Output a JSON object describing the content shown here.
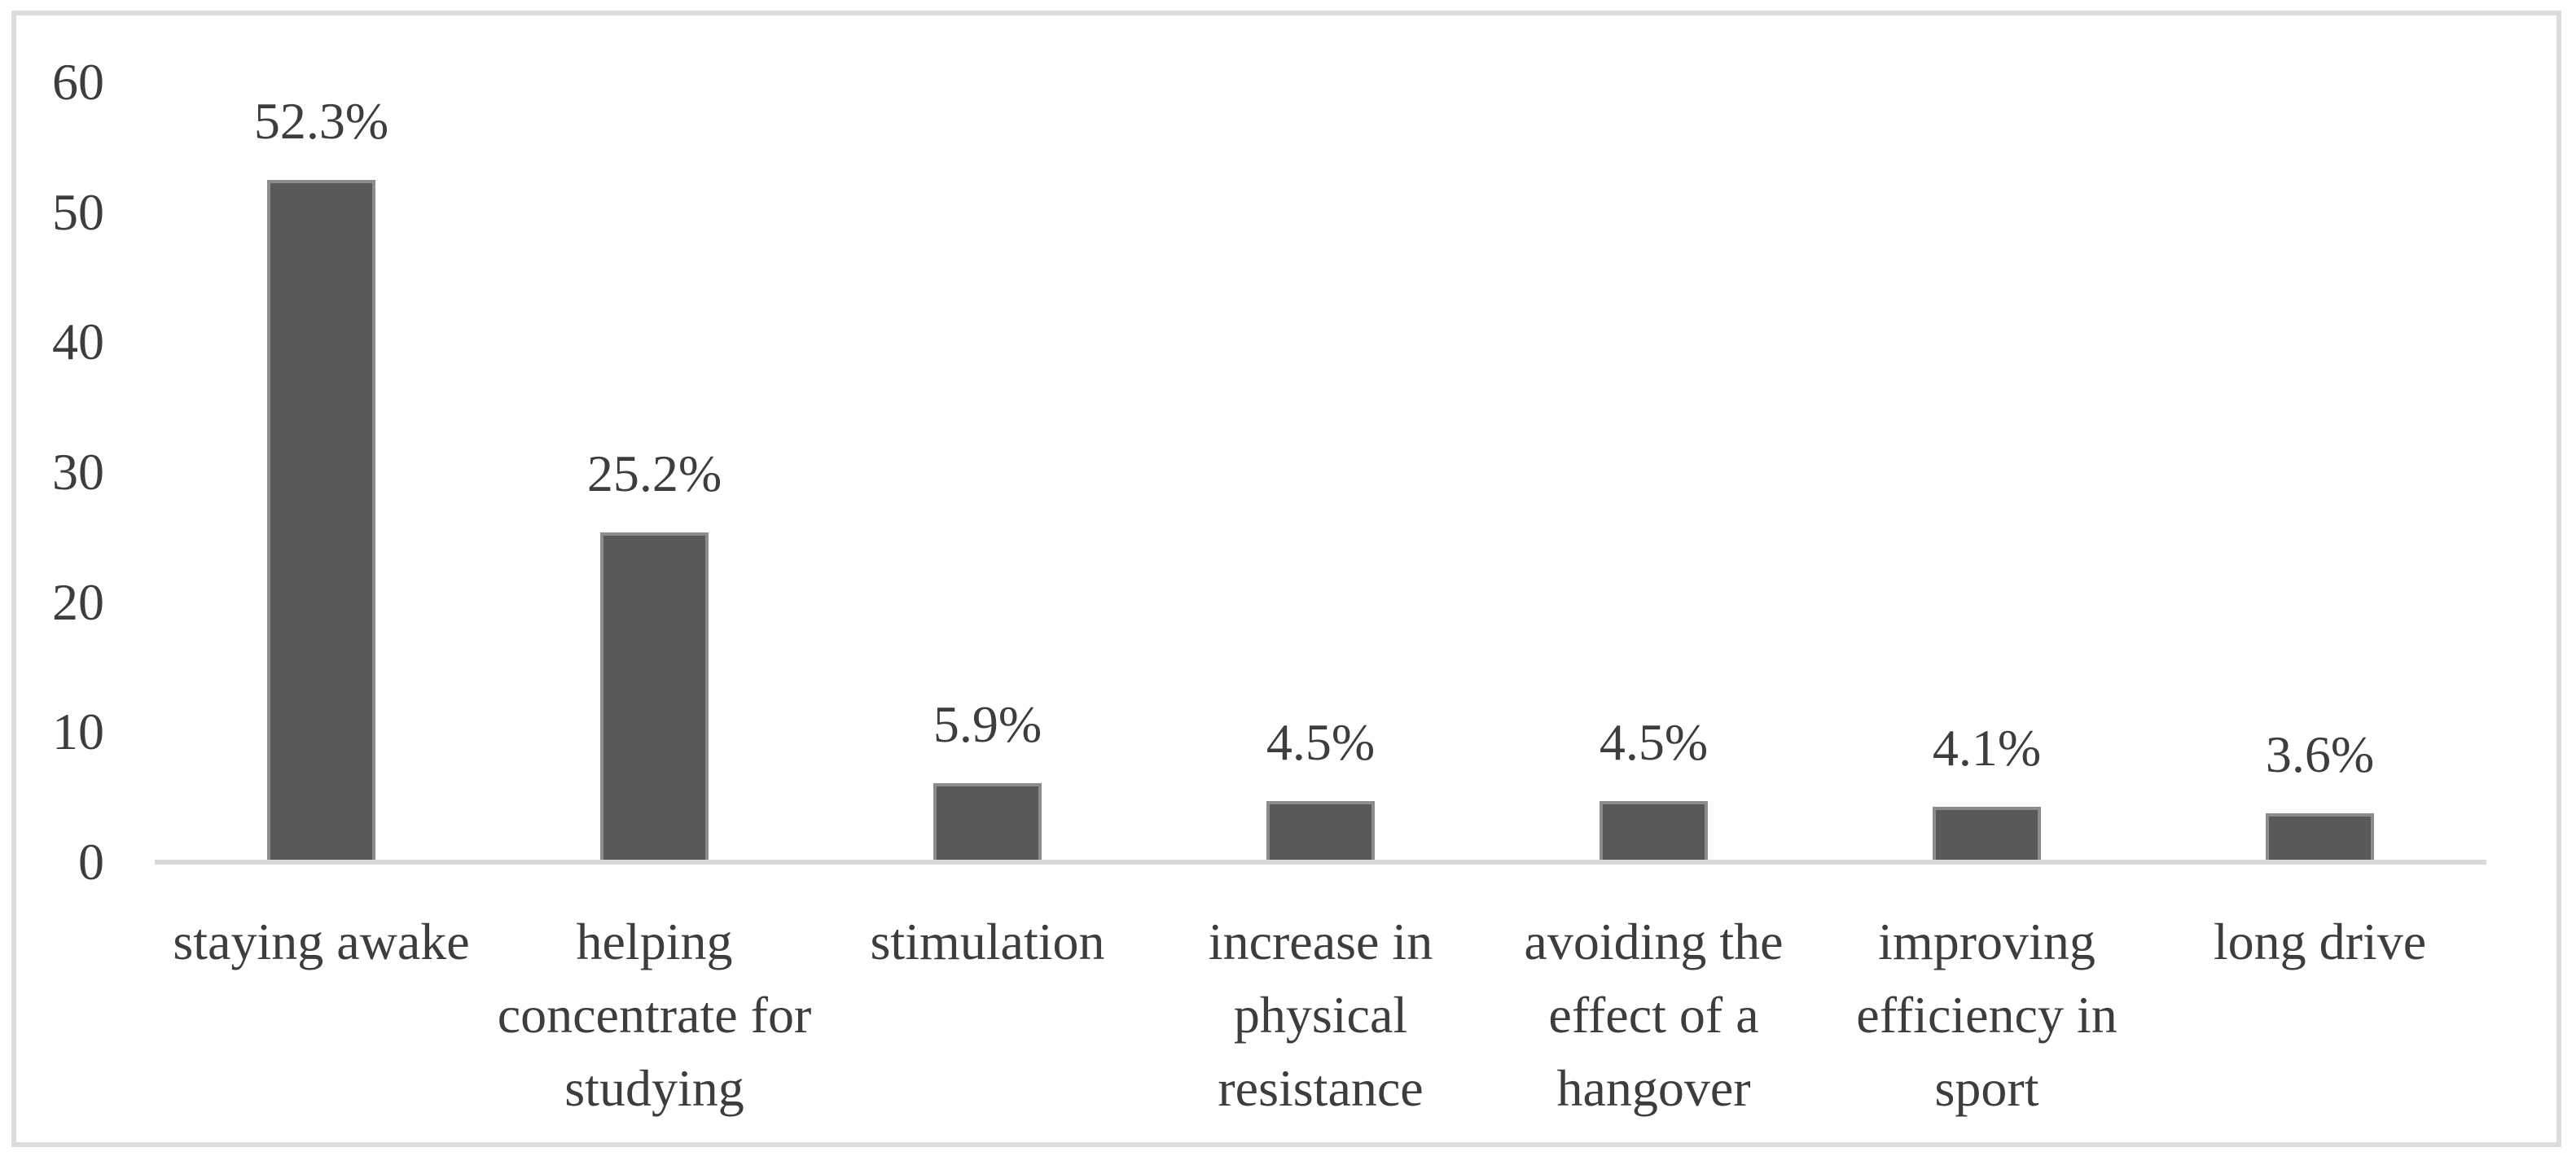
{
  "figure": {
    "description": "bar chart of reasons for energy drink consumption",
    "background": "#ffffff",
    "frame_border_color": "#dcdcdc"
  },
  "chart_data": {
    "type": "bar",
    "title": "",
    "xlabel": "",
    "ylabel": "",
    "categories": [
      "staying awake",
      "helping concentrate for studying",
      "stimulation",
      "increase in physical resistance",
      "avoiding the effect of a hangover",
      "improving efficiency in sport",
      "long drive"
    ],
    "values": [
      52.3,
      25.2,
      5.9,
      4.5,
      4.5,
      4.1,
      3.6
    ],
    "data_labels": [
      "52.3%",
      "25.2%",
      "5.9%",
      "4.5%",
      "4.5%",
      "4.1%",
      "3.6%"
    ],
    "y_ticks": [
      "0",
      "10",
      "20",
      "30",
      "40",
      "50",
      "60"
    ],
    "y_tick_values": [
      0,
      10,
      20,
      30,
      40,
      50,
      60
    ],
    "ylim": [
      0,
      60
    ],
    "grid": false,
    "legend_position": "none",
    "bar_fill_color": "#595959",
    "bar_border_color": "#8c8c8c",
    "axis_line_color": "#d9d9d9",
    "text_color": "#3d3d3d"
  }
}
